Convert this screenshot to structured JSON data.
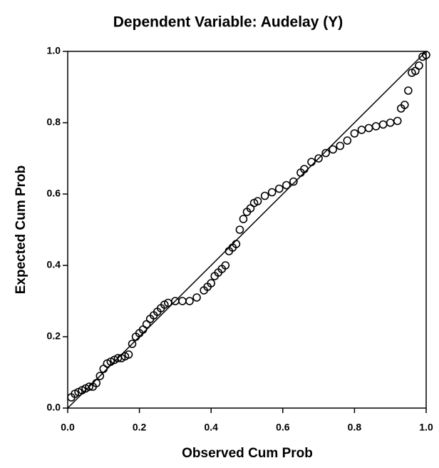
{
  "chart_data": {
    "type": "scatter",
    "title": "Dependent Variable: Audelay (Y)",
    "x_label": "Observed Cum Prob",
    "y_label": "Expected Cum Prob",
    "color": "#000000",
    "xlim": [
      0,
      1
    ],
    "ylim": [
      0,
      1
    ],
    "xticks": [
      {
        "value": 0,
        "label": "0.0"
      },
      0.2,
      0.4,
      0.6,
      0.8,
      {
        "value": 1,
        "label": "1.0"
      }
    ],
    "yticks": [
      {
        "value": 0,
        "label": "0.0"
      },
      0.2,
      0.4,
      0.6,
      0.8,
      {
        "value": 1,
        "label": "1.0"
      }
    ],
    "x": [
      0.01,
      0.02,
      0.03,
      0.04,
      0.05,
      0.06,
      0.07,
      0.08,
      0.09,
      0.1,
      0.11,
      0.12,
      0.13,
      0.14,
      0.15,
      0.16,
      0.17,
      0.18,
      0.19,
      0.2,
      0.21,
      0.22,
      0.23,
      0.24,
      0.25,
      0.26,
      0.27,
      0.28,
      0.3,
      0.32,
      0.34,
      0.36,
      0.38,
      0.39,
      0.4,
      0.41,
      0.42,
      0.43,
      0.44,
      0.45,
      0.46,
      0.47,
      0.48,
      0.49,
      0.5,
      0.51,
      0.52,
      0.53,
      0.55,
      0.57,
      0.59,
      0.61,
      0.63,
      0.65,
      0.66,
      0.68,
      0.7,
      0.72,
      0.74,
      0.76,
      0.78,
      0.8,
      0.82,
      0.84,
      0.86,
      0.88,
      0.9,
      0.92,
      0.93,
      0.94,
      0.95,
      0.96,
      0.97,
      0.98,
      0.99,
      1.0
    ],
    "y": [
      0.03,
      0.04,
      0.045,
      0.05,
      0.055,
      0.06,
      0.06,
      0.07,
      0.09,
      0.11,
      0.125,
      0.13,
      0.135,
      0.14,
      0.14,
      0.145,
      0.15,
      0.18,
      0.2,
      0.21,
      0.22,
      0.235,
      0.25,
      0.26,
      0.27,
      0.28,
      0.29,
      0.295,
      0.3,
      0.3,
      0.3,
      0.31,
      0.33,
      0.34,
      0.35,
      0.37,
      0.38,
      0.39,
      0.4,
      0.44,
      0.45,
      0.46,
      0.5,
      0.53,
      0.55,
      0.56,
      0.575,
      0.58,
      0.595,
      0.605,
      0.615,
      0.625,
      0.635,
      0.66,
      0.67,
      0.69,
      0.7,
      0.715,
      0.725,
      0.735,
      0.75,
      0.77,
      0.78,
      0.785,
      0.79,
      0.795,
      0.8,
      0.805,
      0.84,
      0.85,
      0.89,
      0.94,
      0.945,
      0.96,
      0.985,
      0.99
    ]
  }
}
